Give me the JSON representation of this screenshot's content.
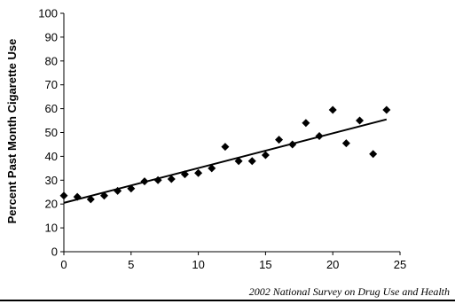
{
  "chart_data": {
    "type": "scatter",
    "title": "",
    "xlabel": "",
    "ylabel": "Percent Past Month Cigarette Use",
    "xlim": [
      0,
      25
    ],
    "ylim": [
      0,
      100
    ],
    "x_ticks": [
      0,
      5,
      10,
      15,
      20,
      25
    ],
    "y_ticks": [
      0,
      10,
      20,
      30,
      40,
      50,
      60,
      70,
      80,
      90,
      100
    ],
    "grid": false,
    "legend": "none",
    "marker": "diamond",
    "marker_color": "#000000",
    "points": [
      {
        "x": 0,
        "y": 23.5
      },
      {
        "x": 1,
        "y": 23
      },
      {
        "x": 2,
        "y": 22
      },
      {
        "x": 3,
        "y": 23.5
      },
      {
        "x": 4,
        "y": 25.5
      },
      {
        "x": 5,
        "y": 26.5
      },
      {
        "x": 6,
        "y": 29.5
      },
      {
        "x": 7,
        "y": 30
      },
      {
        "x": 8,
        "y": 30.5
      },
      {
        "x": 9,
        "y": 32.5
      },
      {
        "x": 10,
        "y": 33
      },
      {
        "x": 11,
        "y": 35
      },
      {
        "x": 12,
        "y": 44
      },
      {
        "x": 13,
        "y": 38
      },
      {
        "x": 14,
        "y": 38
      },
      {
        "x": 15,
        "y": 40.5
      },
      {
        "x": 16,
        "y": 47
      },
      {
        "x": 17,
        "y": 45
      },
      {
        "x": 18,
        "y": 54
      },
      {
        "x": 19,
        "y": 48.5
      },
      {
        "x": 20,
        "y": 59.5
      },
      {
        "x": 21,
        "y": 45.5
      },
      {
        "x": 22,
        "y": 55
      },
      {
        "x": 23,
        "y": 41
      },
      {
        "x": 24,
        "y": 59.5
      }
    ],
    "trendline": {
      "x": [
        0,
        24
      ],
      "y": [
        20.5,
        55.5
      ]
    },
    "source_note": "2002 National Survey on Drug Use and Health"
  }
}
